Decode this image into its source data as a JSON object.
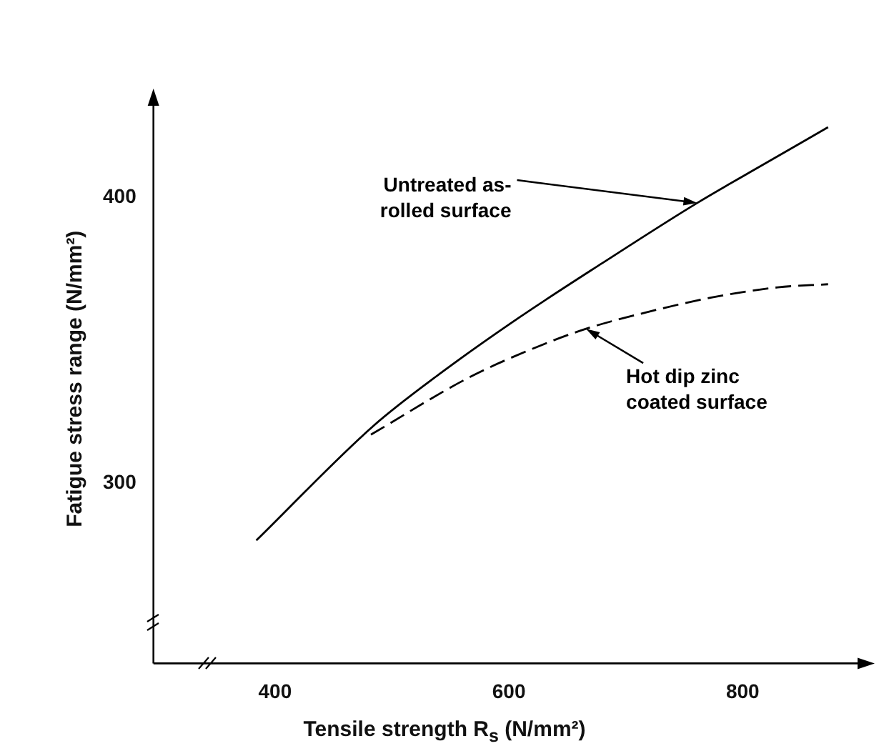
{
  "chart_data": {
    "type": "line",
    "xlabel": "Tensile strength R$_{s}$ (N/mm²)",
    "ylabel": "Fatigue stress range (N/mm²)",
    "xlim": [
      296,
      908
    ],
    "ylim": [
      237,
      436
    ],
    "xticks": [
      400,
      600,
      800
    ],
    "yticks": [
      300,
      400
    ],
    "grid": false,
    "legend": false,
    "marker": "none",
    "series": [
      {
        "color": "#000000",
        "line_style": "solid",
        "x": [
          384,
          484,
          540,
          609,
          680,
          761,
          820,
          873
        ],
        "values": [
          280,
          320,
          338,
          358,
          377,
          398,
          412,
          424.5
        ]
      },
      {
        "color": "#000000",
        "line_style": "dashed",
        "x": [
          482,
          566,
          620,
          666,
          720,
          774,
          830,
          873
        ],
        "values": [
          317,
          337,
          347,
          354,
          360,
          365,
          368.5,
          369.6
        ]
      }
    ],
    "annotations": [
      {
        "text": "Untreated as-\nrolled surface",
        "x": 761,
        "y": 398
      },
      {
        "text": "Hot dip zinc\ncoated surface",
        "x": 666,
        "y": 354
      }
    ]
  }
}
